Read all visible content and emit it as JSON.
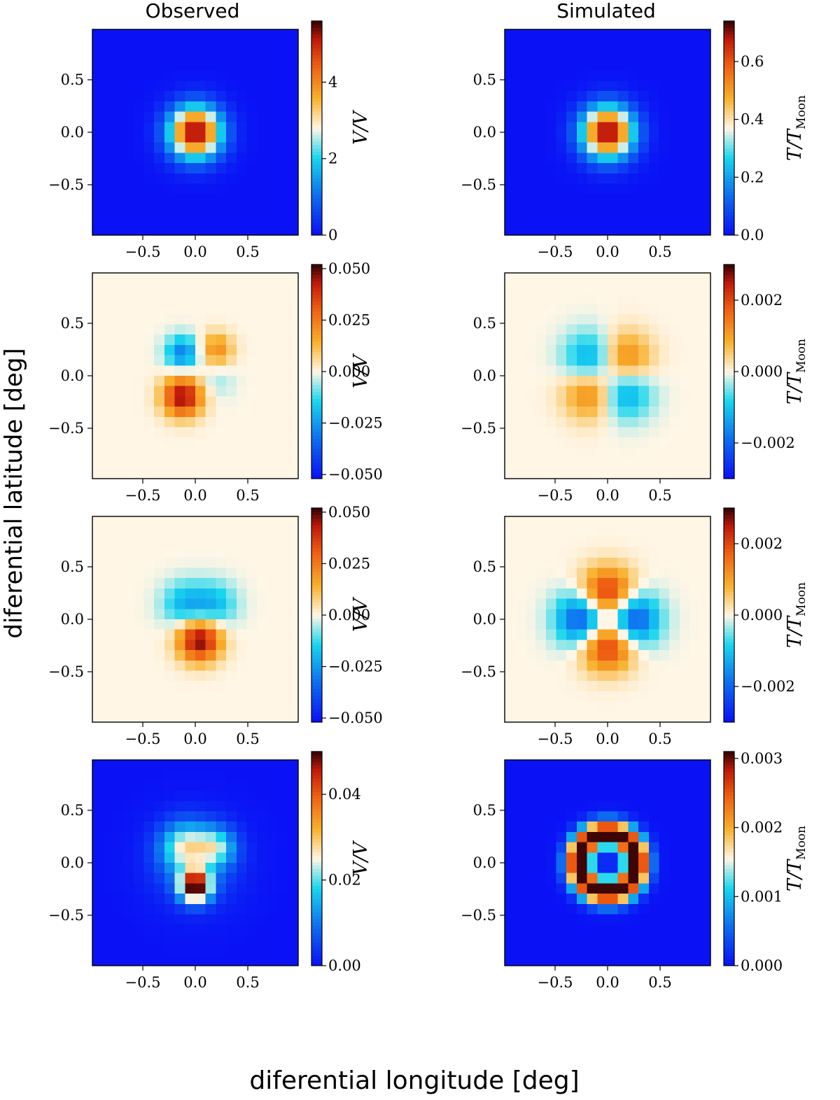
{
  "figure": {
    "column_titles": [
      "Observed",
      "Simulated"
    ],
    "ylabel": "diferential latitude [deg]",
    "xlabel": "diferential longitude [deg]"
  },
  "colormap": {
    "stops": [
      "#0a12f5",
      "#0e6df0",
      "#18d6ee",
      "#fff6e6",
      "#f8b12c",
      "#ee5d12",
      "#c01a0a",
      "#3e0505"
    ],
    "stop_positions": [
      0,
      0.18,
      0.36,
      0.5,
      0.64,
      0.8,
      0.92,
      1.0
    ]
  },
  "chart_data": [
    {
      "type": "heatmap",
      "panel": "row1-observed",
      "column": "Observed",
      "row": 1,
      "pattern": "gaussian",
      "sigma_deg": 0.17,
      "x_range": [
        -0.98,
        0.98
      ],
      "y_range": [
        -0.98,
        0.98
      ],
      "grid": [
        20,
        20
      ],
      "xticks": [
        -0.5,
        0.0,
        0.5
      ],
      "xticklabels": [
        "−0.5",
        "0.0",
        "0.5"
      ],
      "yticks": [
        0.5,
        0.0,
        -0.5
      ],
      "yticklabels": [
        "0.5",
        "0.0",
        "−0.5"
      ],
      "clim": [
        0,
        5.6
      ],
      "cticks": [
        0,
        2,
        4
      ],
      "cticklabels": [
        "0",
        "2",
        "4"
      ],
      "colorbar_label": "V/V"
    },
    {
      "type": "heatmap",
      "panel": "row1-simulated",
      "column": "Simulated",
      "row": 1,
      "pattern": "gaussian",
      "sigma_deg": 0.17,
      "x_range": [
        -0.98,
        0.98
      ],
      "y_range": [
        -0.98,
        0.98
      ],
      "grid": [
        20,
        20
      ],
      "xticks": [
        -0.5,
        0.0,
        0.5
      ],
      "xticklabels": [
        "−0.5",
        "0.0",
        "0.5"
      ],
      "yticks": [
        0.5,
        0.0,
        -0.5
      ],
      "yticklabels": [
        "0.5",
        "0.0",
        "−0.5"
      ],
      "clim": [
        0,
        0.74
      ],
      "cticks": [
        0.0,
        0.2,
        0.4,
        0.6
      ],
      "cticklabels": [
        "0.0",
        "0.2",
        "0.4",
        "0.6"
      ],
      "colorbar_label": "T/T",
      "colorbar_label_sub": "Moon"
    },
    {
      "type": "heatmap",
      "panel": "row2-observed",
      "column": "Observed",
      "row": 2,
      "pattern": "obs-offcenter-dipole",
      "x_range": [
        -0.98,
        0.98
      ],
      "y_range": [
        -0.98,
        0.98
      ],
      "grid": [
        20,
        20
      ],
      "xticks": [
        -0.5,
        0.0,
        0.5
      ],
      "xticklabels": [
        "−0.5",
        "0.0",
        "0.5"
      ],
      "yticks": [
        0.5,
        0.0,
        -0.5
      ],
      "yticklabels": [
        "0.5",
        "0.0",
        "−0.5"
      ],
      "clim": [
        -0.052,
        0.052
      ],
      "cticks": [
        -0.05,
        -0.025,
        0.0,
        0.025,
        0.05
      ],
      "cticklabels": [
        "−0.050",
        "−0.025",
        "0.000",
        "0.025",
        "0.050"
      ],
      "colorbar_label": "V/V"
    },
    {
      "type": "heatmap",
      "panel": "row2-simulated",
      "column": "Simulated",
      "row": 2,
      "pattern": "quadrupole-diagonal",
      "x_range": [
        -0.98,
        0.98
      ],
      "y_range": [
        -0.98,
        0.98
      ],
      "grid": [
        20,
        20
      ],
      "xticks": [
        -0.5,
        0.0,
        0.5
      ],
      "xticklabels": [
        "−0.5",
        "0.0",
        "0.5"
      ],
      "yticks": [
        0.5,
        0.0,
        -0.5
      ],
      "yticklabels": [
        "0.5",
        "0.0",
        "−0.5"
      ],
      "clim": [
        -0.003,
        0.003
      ],
      "cticks": [
        -0.002,
        0.0,
        0.002
      ],
      "cticklabels": [
        "−0.002",
        "0.000",
        "0.002"
      ],
      "colorbar_label": "T/T",
      "colorbar_label_sub": "Moon"
    },
    {
      "type": "heatmap",
      "panel": "row3-observed",
      "column": "Observed",
      "row": 3,
      "pattern": "obs-vertical-dipole",
      "x_range": [
        -0.98,
        0.98
      ],
      "y_range": [
        -0.98,
        0.98
      ],
      "grid": [
        20,
        20
      ],
      "xticks": [
        -0.5,
        0.0,
        0.5
      ],
      "xticklabels": [
        "−0.5",
        "0.0",
        "0.5"
      ],
      "yticks": [
        0.5,
        0.0,
        -0.5
      ],
      "yticklabels": [
        "0.5",
        "0.0",
        "−0.5"
      ],
      "clim": [
        -0.052,
        0.052
      ],
      "cticks": [
        -0.05,
        -0.025,
        0.0,
        0.025,
        0.05
      ],
      "cticklabels": [
        "−0.050",
        "−0.025",
        "0.000",
        "0.025",
        "0.050"
      ],
      "colorbar_label": "V/V"
    },
    {
      "type": "heatmap",
      "panel": "row3-simulated",
      "column": "Simulated",
      "row": 3,
      "pattern": "quadrupole-axis",
      "x_range": [
        -0.98,
        0.98
      ],
      "y_range": [
        -0.98,
        0.98
      ],
      "grid": [
        20,
        20
      ],
      "xticks": [
        -0.5,
        0.0,
        0.5
      ],
      "xticklabels": [
        "−0.5",
        "0.0",
        "0.5"
      ],
      "yticks": [
        0.5,
        0.0,
        -0.5
      ],
      "yticklabels": [
        "0.5",
        "0.0",
        "−0.5"
      ],
      "clim": [
        -0.003,
        0.003
      ],
      "cticks": [
        -0.002,
        0.0,
        0.002
      ],
      "cticklabels": [
        "−0.002",
        "0.000",
        "0.002"
      ],
      "colorbar_label": "T/T",
      "colorbar_label_sub": "Moon"
    },
    {
      "type": "heatmap",
      "panel": "row4-observed",
      "column": "Observed",
      "row": 4,
      "pattern": "obs-intensity",
      "x_range": [
        -0.98,
        0.98
      ],
      "y_range": [
        -0.98,
        0.98
      ],
      "grid": [
        20,
        20
      ],
      "xticks": [
        -0.5,
        0.0,
        0.5
      ],
      "xticklabels": [
        "−0.5",
        "0.0",
        "0.5"
      ],
      "yticks": [
        0.5,
        0.0,
        -0.5
      ],
      "yticklabels": [
        "0.5",
        "0.0",
        "−0.5"
      ],
      "clim": [
        0,
        0.05
      ],
      "cticks": [
        0.0,
        0.02,
        0.04
      ],
      "cticklabels": [
        "0.00",
        "0.02",
        "0.04"
      ],
      "colorbar_label": "V/V"
    },
    {
      "type": "heatmap",
      "panel": "row4-simulated",
      "column": "Simulated",
      "row": 4,
      "pattern": "ring",
      "x_range": [
        -0.98,
        0.98
      ],
      "y_range": [
        -0.98,
        0.98
      ],
      "grid": [
        20,
        20
      ],
      "xticks": [
        -0.5,
        0.0,
        0.5
      ],
      "xticklabels": [
        "−0.5",
        "0.0",
        "0.5"
      ],
      "yticks": [
        0.5,
        0.0,
        -0.5
      ],
      "yticklabels": [
        "0.5",
        "0.0",
        "−0.5"
      ],
      "clim": [
        0,
        0.0031
      ],
      "cticks": [
        0.0,
        0.001,
        0.002,
        0.003
      ],
      "cticklabels": [
        "0.000",
        "0.001",
        "0.002",
        "0.003"
      ],
      "colorbar_label": "T/T",
      "colorbar_label_sub": "Moon"
    }
  ]
}
